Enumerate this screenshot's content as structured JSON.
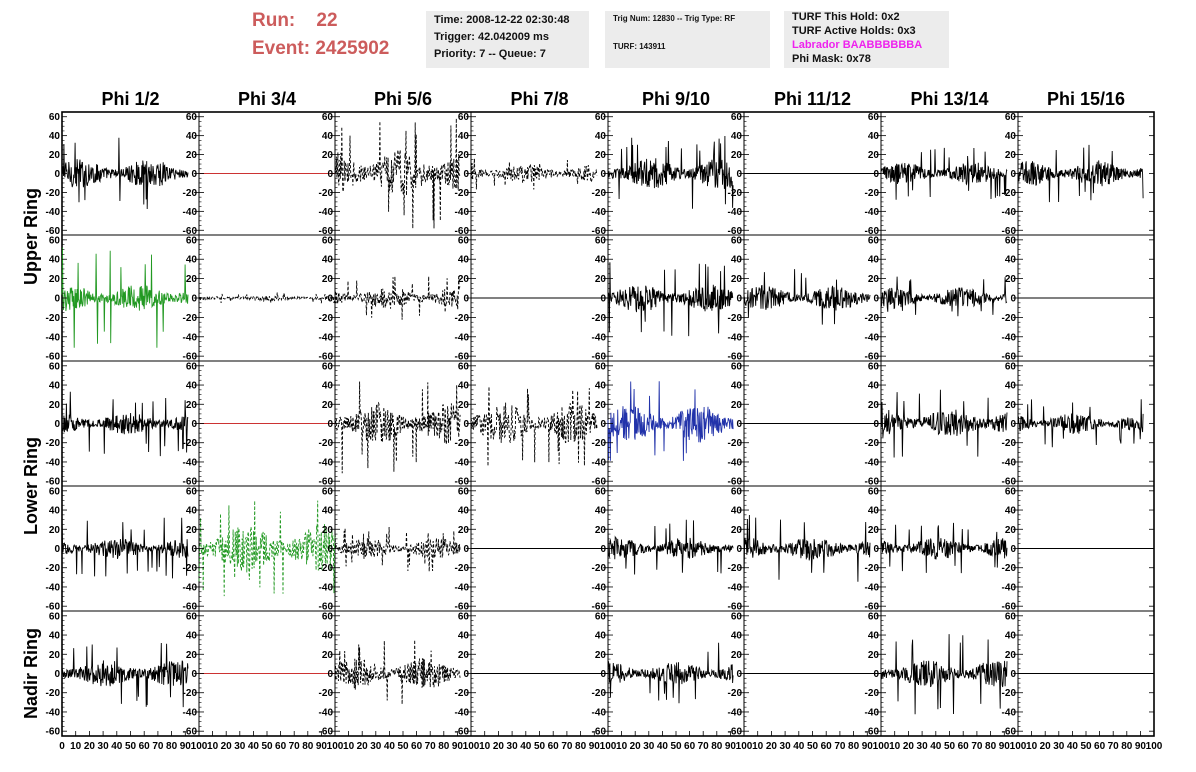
{
  "header": {
    "run_label": "Run:",
    "run_value": "22",
    "event_label": "Event:",
    "event_value": "2425902",
    "time_box": [
      "Time: 2008-12-22 02:30:48",
      "Trigger: 42.042009 ms",
      "Priority: 7 -- Queue: 7"
    ],
    "trig_box": [
      "Trig Num: 12830 -- Trig Type: RF",
      "TURF: 143911"
    ],
    "turf_box": [
      "TURF This Hold: 0x2",
      "TURF Active Holds: 0x3",
      "Labrador BAABBBBBBA",
      "Phi Mask: 0x78"
    ]
  },
  "colors": {
    "run_text": "#cc5c5c",
    "box_bg": "#ececec",
    "labrador_text": "#ee22ee",
    "trace_black": "#000000",
    "trace_green": "#229922",
    "trace_blue": "#2233aa",
    "trace_red": "#cc3333"
  },
  "chart_data": {
    "type": "line",
    "title": "",
    "columns": [
      "Phi 1/2",
      "Phi 3/4",
      "Phi 5/6",
      "Phi 7/8",
      "Phi 9/10",
      "Phi 11/12",
      "Phi 13/14",
      "Phi 15/16"
    ],
    "rows": [
      "Upper Ring",
      "Lower Ring",
      "Nadir Ring"
    ],
    "ylim": [
      -65,
      65
    ],
    "xlim": [
      0,
      100
    ],
    "y_ticks": [
      -60,
      -40,
      -20,
      0,
      20,
      40,
      60
    ],
    "x_ticks": [
      0,
      10,
      20,
      30,
      40,
      50,
      60,
      70,
      80,
      90,
      100
    ],
    "grid": false,
    "legend": "none",
    "panels": [
      [
        {
          "color": "black",
          "style": "solid",
          "amp": 16,
          "spike": 38,
          "xmax": 92
        },
        {
          "color": "red",
          "style": "solid",
          "amp": 0,
          "spike": 0,
          "xmax": 100
        },
        {
          "color": "black",
          "style": "dashed",
          "amp": 26,
          "spike": 60,
          "xmax": 92
        },
        {
          "color": "black",
          "style": "dashed",
          "amp": 10,
          "spike": 18,
          "xmax": 92
        },
        {
          "color": "black",
          "style": "solid",
          "amp": 17,
          "spike": 40,
          "xmax": 92
        },
        {
          "color": "black",
          "style": "solid",
          "amp": 0,
          "spike": 0,
          "xmax": 100
        },
        {
          "color": "black",
          "style": "solid",
          "amp": 12,
          "spike": 28,
          "xmax": 92
        },
        {
          "color": "black",
          "style": "solid",
          "amp": 14,
          "spike": 32,
          "xmax": 92
        }
      ],
      [
        {
          "color": "green",
          "style": "solid",
          "amp": 14,
          "spike": 52,
          "xmax": 92
        },
        {
          "color": "black",
          "style": "dashed",
          "amp": 3,
          "spike": 6,
          "xmax": 100
        },
        {
          "color": "black",
          "style": "dashed",
          "amp": 12,
          "spike": 24,
          "xmax": 92
        },
        {
          "color": "black",
          "style": "solid",
          "amp": 0,
          "spike": 0,
          "xmax": 100
        },
        {
          "color": "black",
          "style": "solid",
          "amp": 15,
          "spike": 40,
          "xmax": 92
        },
        {
          "color": "black",
          "style": "solid",
          "amp": 13,
          "spike": 30,
          "xmax": 92
        },
        {
          "color": "black",
          "style": "solid",
          "amp": 11,
          "spike": 22,
          "xmax": 92
        },
        {
          "color": "black",
          "style": "solid",
          "amp": 0,
          "spike": 0,
          "xmax": 100
        }
      ],
      [
        {
          "color": "black",
          "style": "solid",
          "amp": 12,
          "spike": 34,
          "xmax": 92
        },
        {
          "color": "red",
          "style": "solid",
          "amp": 0,
          "spike": 0,
          "xmax": 100
        },
        {
          "color": "black",
          "style": "dashed",
          "amp": 22,
          "spike": 52,
          "xmax": 92
        },
        {
          "color": "black",
          "style": "dashed",
          "amp": 22,
          "spike": 48,
          "xmax": 92
        },
        {
          "color": "blue",
          "style": "solid",
          "amp": 20,
          "spike": 46,
          "xmax": 92
        },
        {
          "color": "black",
          "style": "solid",
          "amp": 0,
          "spike": 0,
          "xmax": 100
        },
        {
          "color": "black",
          "style": "solid",
          "amp": 16,
          "spike": 36,
          "xmax": 92
        },
        {
          "color": "black",
          "style": "solid",
          "amp": 11,
          "spike": 26,
          "xmax": 92
        }
      ],
      [
        {
          "color": "black",
          "style": "solid",
          "amp": 11,
          "spike": 32,
          "xmax": 92
        },
        {
          "color": "green",
          "style": "dashed",
          "amp": 26,
          "spike": 50,
          "xmax": 100
        },
        {
          "color": "black",
          "style": "dashed",
          "amp": 11,
          "spike": 24,
          "xmax": 92
        },
        {
          "color": "black",
          "style": "solid",
          "amp": 0,
          "spike": 0,
          "xmax": 100
        },
        {
          "color": "black",
          "style": "solid",
          "amp": 12,
          "spike": 30,
          "xmax": 92
        },
        {
          "color": "black",
          "style": "solid",
          "amp": 13,
          "spike": 36,
          "xmax": 92
        },
        {
          "color": "black",
          "style": "solid",
          "amp": 12,
          "spike": 28,
          "xmax": 92
        },
        {
          "color": "black",
          "style": "solid",
          "amp": 0,
          "spike": 0,
          "xmax": 100
        }
      ],
      [
        {
          "color": "black",
          "style": "solid",
          "amp": 15,
          "spike": 38,
          "xmax": 92
        },
        {
          "color": "red",
          "style": "solid",
          "amp": 0,
          "spike": 0,
          "xmax": 100
        },
        {
          "color": "black",
          "style": "dashed",
          "amp": 17,
          "spike": 36,
          "xmax": 92
        },
        {
          "color": "black",
          "style": "solid",
          "amp": 0,
          "spike": 0,
          "xmax": 100
        },
        {
          "color": "black",
          "style": "solid",
          "amp": 13,
          "spike": 32,
          "xmax": 92
        },
        {
          "color": "black",
          "style": "solid",
          "amp": 0,
          "spike": 0,
          "xmax": 100
        },
        {
          "color": "black",
          "style": "solid",
          "amp": 15,
          "spike": 44,
          "xmax": 92
        },
        {
          "color": "black",
          "style": "solid",
          "amp": 0,
          "spike": 0,
          "xmax": 100
        }
      ]
    ]
  }
}
